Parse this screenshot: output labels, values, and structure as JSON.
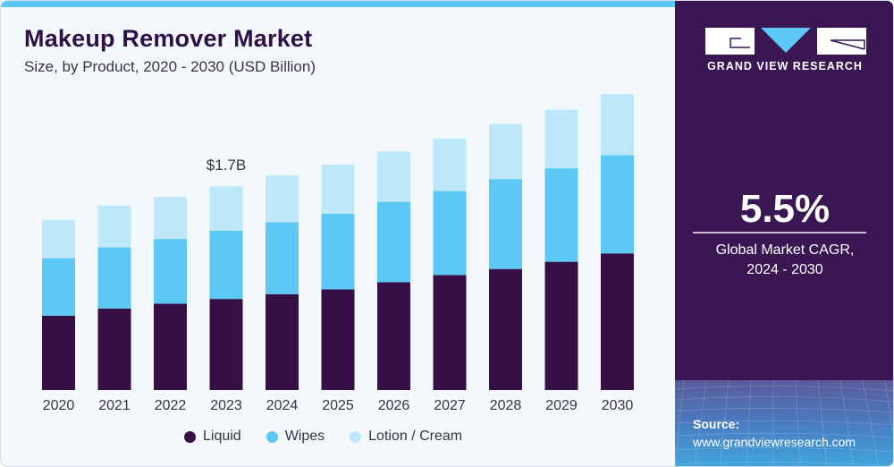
{
  "header": {
    "title": "Makeup Remover Market",
    "subtitle": "Size, by Product, 2020 - 2030 (USD Billion)"
  },
  "brand": {
    "name": "GRAND VIEW RESEARCH",
    "colors": {
      "dark": "#3a1752",
      "accent": "#5bc8f5"
    }
  },
  "kpi": {
    "value": "5.5%",
    "label_line1": "Global Market CAGR,",
    "label_line2": "2024 - 2030"
  },
  "source": {
    "label": "Source:",
    "url": "www.grandviewresearch.com"
  },
  "chart_data": {
    "type": "bar",
    "stacked": true,
    "title": "Makeup Remover Market",
    "subtitle": "Size, by Product, 2020 - 2030 (USD Billion)",
    "xlabel": "",
    "ylabel": "",
    "ylim": [
      0,
      2.6
    ],
    "grid": false,
    "legend_position": "bottom",
    "categories": [
      "2020",
      "2021",
      "2022",
      "2023",
      "2024",
      "2025",
      "2026",
      "2027",
      "2028",
      "2029",
      "2030"
    ],
    "series": [
      {
        "name": "Liquid",
        "color": "#360f47",
        "values": [
          0.62,
          0.68,
          0.72,
          0.76,
          0.8,
          0.84,
          0.9,
          0.96,
          1.01,
          1.07,
          1.14
        ]
      },
      {
        "name": "Wipes",
        "color": "#5bc8f5",
        "values": [
          0.48,
          0.51,
          0.54,
          0.57,
          0.6,
          0.63,
          0.67,
          0.7,
          0.75,
          0.78,
          0.82
        ]
      },
      {
        "name": "Lotion / Cream",
        "color": "#bde8fa",
        "values": [
          0.32,
          0.35,
          0.35,
          0.37,
          0.39,
          0.41,
          0.42,
          0.44,
          0.46,
          0.49,
          0.51
        ]
      }
    ],
    "annotations": [
      {
        "category": "2023",
        "text": "$1.7B"
      }
    ]
  }
}
